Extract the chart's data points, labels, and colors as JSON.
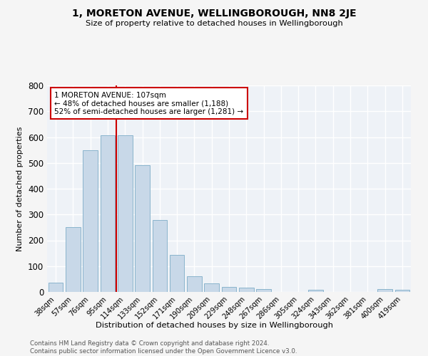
{
  "title": "1, MORETON AVENUE, WELLINGBOROUGH, NN8 2JE",
  "subtitle": "Size of property relative to detached houses in Wellingborough",
  "xlabel": "Distribution of detached houses by size in Wellingborough",
  "ylabel": "Number of detached properties",
  "categories": [
    "38sqm",
    "57sqm",
    "76sqm",
    "95sqm",
    "114sqm",
    "133sqm",
    "152sqm",
    "171sqm",
    "190sqm",
    "209sqm",
    "229sqm",
    "248sqm",
    "267sqm",
    "286sqm",
    "305sqm",
    "324sqm",
    "343sqm",
    "362sqm",
    "381sqm",
    "400sqm",
    "419sqm"
  ],
  "values": [
    35,
    250,
    548,
    606,
    606,
    492,
    280,
    143,
    62,
    32,
    20,
    16,
    12,
    0,
    0,
    8,
    0,
    0,
    0,
    10,
    8
  ],
  "bar_color": "#c8d8e8",
  "bar_edge_color": "#8ab4cc",
  "vline_color": "#cc0000",
  "annotation_text": "1 MORETON AVENUE: 107sqm\n← 48% of detached houses are smaller (1,188)\n52% of semi-detached houses are larger (1,281) →",
  "annotation_box_color": "#ffffff",
  "annotation_box_edge": "#cc0000",
  "ylim": [
    0,
    800
  ],
  "yticks": [
    0,
    100,
    200,
    300,
    400,
    500,
    600,
    700,
    800
  ],
  "footer": "Contains HM Land Registry data © Crown copyright and database right 2024.\nContains public sector information licensed under the Open Government Licence v3.0.",
  "bg_color": "#eef2f7",
  "fig_color": "#f5f5f5",
  "grid_color": "#ffffff"
}
